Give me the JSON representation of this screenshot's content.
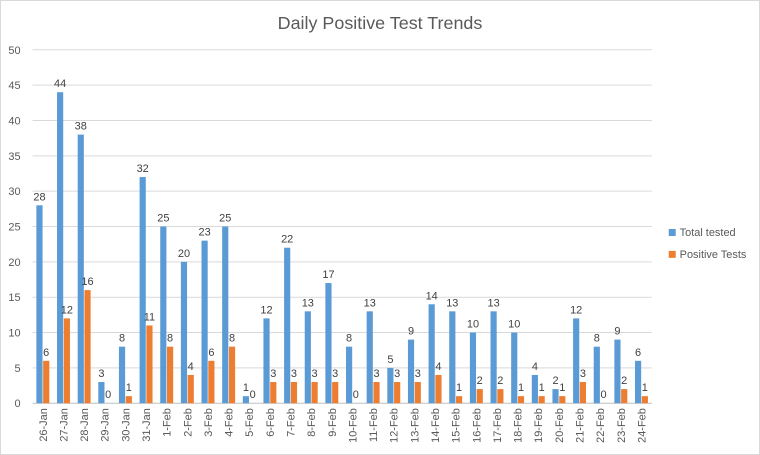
{
  "chart_data": {
    "type": "bar",
    "title": "Daily Positive Test Trends",
    "categories": [
      "26-Jan",
      "27-Jan",
      "28-Jan",
      "29-Jan",
      "30-Jan",
      "31-Jan",
      "1-Feb",
      "2-Feb",
      "3-Feb",
      "4-Feb",
      "5-Feb",
      "6-Feb",
      "7-Feb",
      "8-Feb",
      "9-Feb",
      "10-Feb",
      "11-Feb",
      "12-Feb",
      "13-Feb",
      "14-Feb",
      "15-Feb",
      "16-Feb",
      "17-Feb",
      "18-Feb",
      "19-Feb",
      "20-Feb",
      "21-Feb",
      "22-Feb",
      "23-Feb",
      "24-Feb"
    ],
    "series": [
      {
        "name": "Total tested",
        "color": "#5b9bd5",
        "values": [
          28,
          44,
          38,
          3,
          8,
          32,
          25,
          20,
          23,
          25,
          1,
          12,
          22,
          13,
          17,
          8,
          13,
          5,
          9,
          14,
          13,
          10,
          13,
          10,
          4,
          2,
          12,
          8,
          9,
          6
        ]
      },
      {
        "name": "Positive Tests",
        "color": "#ed7d31",
        "values": [
          6,
          12,
          16,
          0,
          1,
          11,
          8,
          4,
          6,
          8,
          0,
          3,
          3,
          3,
          3,
          0,
          3,
          3,
          3,
          4,
          1,
          2,
          2,
          1,
          1,
          1,
          3,
          0,
          2,
          1
        ]
      }
    ],
    "ylim": [
      0,
      50
    ],
    "yticks": [
      0,
      5,
      10,
      15,
      20,
      25,
      30,
      35,
      40,
      45,
      50
    ],
    "grid": true,
    "legend": "right"
  }
}
